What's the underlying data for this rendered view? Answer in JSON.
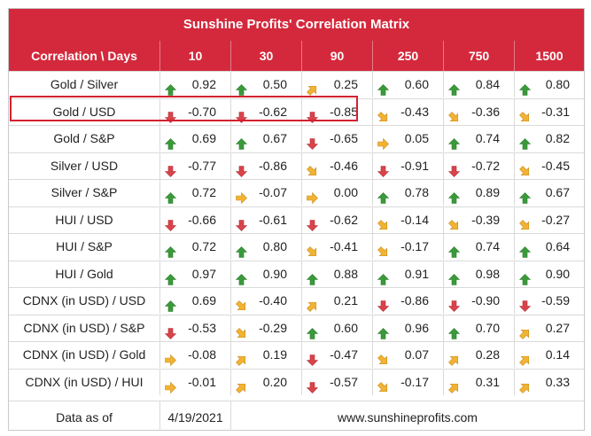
{
  "title": "Sunshine Profits' Correlation Matrix",
  "header": {
    "label": "Correlation \\ Days",
    "periods": [
      "10",
      "30",
      "90",
      "250",
      "750",
      "1500"
    ]
  },
  "colors": {
    "header_bg": "#d4293c",
    "highlight": "#d4212f",
    "up": "#3a9a3a",
    "down": "#d9434a",
    "flat": "#f2b233",
    "diag": "#f2b233"
  },
  "rows": [
    {
      "label": "Gold / Silver",
      "cells": [
        {
          "arrow": "up",
          "value": "0.92"
        },
        {
          "arrow": "up",
          "value": "0.50"
        },
        {
          "arrow": "up-right",
          "value": "0.25"
        },
        {
          "arrow": "up",
          "value": "0.60"
        },
        {
          "arrow": "up",
          "value": "0.84"
        },
        {
          "arrow": "up",
          "value": "0.80"
        }
      ]
    },
    {
      "label": "Gold / USD",
      "highlighted": true,
      "cells": [
        {
          "arrow": "down",
          "value": "-0.70"
        },
        {
          "arrow": "down",
          "value": "-0.62"
        },
        {
          "arrow": "down",
          "value": "-0.85"
        },
        {
          "arrow": "down-right",
          "value": "-0.43"
        },
        {
          "arrow": "down-right",
          "value": "-0.36"
        },
        {
          "arrow": "down-right",
          "value": "-0.31"
        }
      ]
    },
    {
      "label": "Gold / S&P",
      "cells": [
        {
          "arrow": "up",
          "value": "0.69"
        },
        {
          "arrow": "up",
          "value": "0.67"
        },
        {
          "arrow": "down",
          "value": "-0.65"
        },
        {
          "arrow": "right",
          "value": "0.05"
        },
        {
          "arrow": "up",
          "value": "0.74"
        },
        {
          "arrow": "up",
          "value": "0.82"
        }
      ]
    },
    {
      "label": "Silver / USD",
      "cells": [
        {
          "arrow": "down",
          "value": "-0.77"
        },
        {
          "arrow": "down",
          "value": "-0.86"
        },
        {
          "arrow": "down-right",
          "value": "-0.46"
        },
        {
          "arrow": "down",
          "value": "-0.91"
        },
        {
          "arrow": "down",
          "value": "-0.72"
        },
        {
          "arrow": "down-right",
          "value": "-0.45"
        }
      ]
    },
    {
      "label": "Silver / S&P",
      "cells": [
        {
          "arrow": "up",
          "value": "0.72"
        },
        {
          "arrow": "right",
          "value": "-0.07"
        },
        {
          "arrow": "right",
          "value": "0.00"
        },
        {
          "arrow": "up",
          "value": "0.78"
        },
        {
          "arrow": "up",
          "value": "0.89"
        },
        {
          "arrow": "up",
          "value": "0.67"
        }
      ]
    },
    {
      "label": "HUI / USD",
      "cells": [
        {
          "arrow": "down",
          "value": "-0.66"
        },
        {
          "arrow": "down",
          "value": "-0.61"
        },
        {
          "arrow": "down",
          "value": "-0.62"
        },
        {
          "arrow": "down-right",
          "value": "-0.14"
        },
        {
          "arrow": "down-right",
          "value": "-0.39"
        },
        {
          "arrow": "down-right",
          "value": "-0.27"
        }
      ]
    },
    {
      "label": "HUI / S&P",
      "cells": [
        {
          "arrow": "up",
          "value": "0.72"
        },
        {
          "arrow": "up",
          "value": "0.80"
        },
        {
          "arrow": "down-right",
          "value": "-0.41"
        },
        {
          "arrow": "down-right",
          "value": "-0.17"
        },
        {
          "arrow": "up",
          "value": "0.74"
        },
        {
          "arrow": "up",
          "value": "0.64"
        }
      ]
    },
    {
      "label": "HUI / Gold",
      "cells": [
        {
          "arrow": "up",
          "value": "0.97"
        },
        {
          "arrow": "up",
          "value": "0.90"
        },
        {
          "arrow": "up",
          "value": "0.88"
        },
        {
          "arrow": "up",
          "value": "0.91"
        },
        {
          "arrow": "up",
          "value": "0.98"
        },
        {
          "arrow": "up",
          "value": "0.90"
        }
      ]
    },
    {
      "label": "CDNX (in USD) / USD",
      "cells": [
        {
          "arrow": "up",
          "value": "0.69"
        },
        {
          "arrow": "down-right",
          "value": "-0.40"
        },
        {
          "arrow": "up-right",
          "value": "0.21"
        },
        {
          "arrow": "down",
          "value": "-0.86"
        },
        {
          "arrow": "down",
          "value": "-0.90"
        },
        {
          "arrow": "down",
          "value": "-0.59"
        }
      ]
    },
    {
      "label": "CDNX (in USD) / S&P",
      "cells": [
        {
          "arrow": "down",
          "value": "-0.53"
        },
        {
          "arrow": "down-right",
          "value": "-0.29"
        },
        {
          "arrow": "up",
          "value": "0.60"
        },
        {
          "arrow": "up",
          "value": "0.96"
        },
        {
          "arrow": "up",
          "value": "0.70"
        },
        {
          "arrow": "up-right",
          "value": "0.27"
        }
      ]
    },
    {
      "label": "CDNX (in USD) / Gold",
      "cells": [
        {
          "arrow": "right",
          "value": "-0.08"
        },
        {
          "arrow": "up-right",
          "value": "0.19"
        },
        {
          "arrow": "down",
          "value": "-0.47"
        },
        {
          "arrow": "down-right",
          "value": "0.07"
        },
        {
          "arrow": "up-right",
          "value": "0.28"
        },
        {
          "arrow": "up-right",
          "value": "0.14"
        }
      ]
    },
    {
      "label": "CDNX (in USD) / HUI",
      "cells": [
        {
          "arrow": "right",
          "value": "-0.01"
        },
        {
          "arrow": "up-right",
          "value": "0.20"
        },
        {
          "arrow": "down",
          "value": "-0.57"
        },
        {
          "arrow": "down-right",
          "value": "-0.17"
        },
        {
          "arrow": "up-right",
          "value": "0.31"
        },
        {
          "arrow": "up-right",
          "value": "0.33"
        }
      ]
    }
  ],
  "footer": {
    "label": "Data as of",
    "date": "4/19/2021",
    "website": "www.sunshineprofits.com"
  }
}
